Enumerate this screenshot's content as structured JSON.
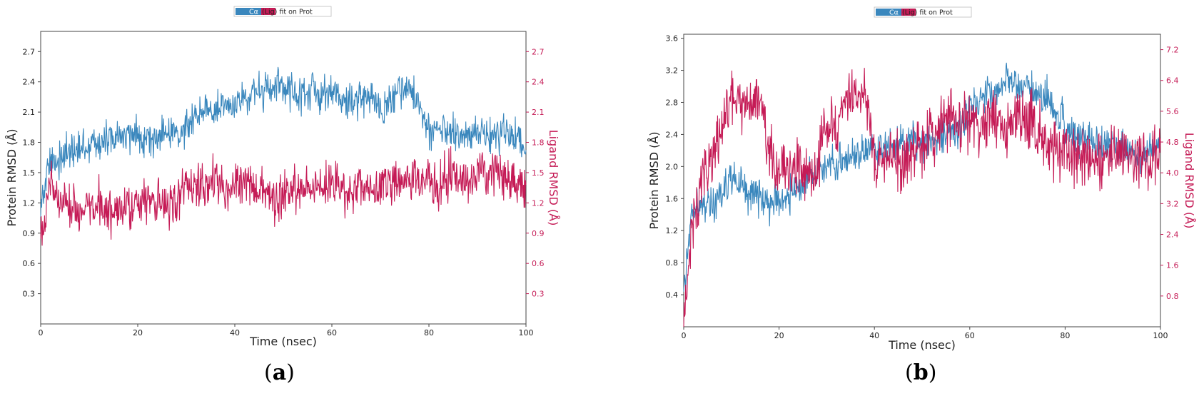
{
  "panels": [
    {
      "label_open": "(",
      "label_letter": "a",
      "label_close": ")",
      "legend": {
        "ca": "Cα",
        "lig": "(Lig) fit on Prot"
      },
      "xlabel": "Time (nsec)",
      "ylabel_left": "Protein RMSD (Å)",
      "ylabel_right": "Ligand RMSD (Å)",
      "xticks": [
        "0",
        "20",
        "40",
        "60",
        "80",
        "100"
      ],
      "yticks_left": [
        "0.3",
        "0.6",
        "0.9",
        "1.2",
        "1.5",
        "1.8",
        "2.1",
        "2.4",
        "2.7"
      ],
      "yticks_right": [
        "0.3",
        "0.6",
        "0.9",
        "1.2",
        "1.5",
        "1.8",
        "2.1",
        "2.4",
        "2.7"
      ]
    },
    {
      "label_open": "(",
      "label_letter": "b",
      "label_close": ")",
      "legend": {
        "ca": "Cα",
        "lig": "(Lig) fit on Prot"
      },
      "xlabel": "Time (nsec)",
      "ylabel_left": "Protein RMSD (Å)",
      "ylabel_right": "Ligand RMSD (Å)",
      "xticks": [
        "0",
        "20",
        "40",
        "60",
        "80",
        "100"
      ],
      "yticks_left": [
        "0.4",
        "0.8",
        "1.2",
        "1.6",
        "2.0",
        "2.4",
        "2.8",
        "3.2",
        "3.6"
      ],
      "yticks_right": [
        "0.8",
        "1.6",
        "2.4",
        "3.2",
        "4.0",
        "4.8",
        "5.6",
        "6.4",
        "7.2"
      ]
    }
  ],
  "colors": {
    "protein": "#3a87bd",
    "ligand": "#c51b56"
  },
  "chart_data": [
    {
      "type": "line",
      "xlabel": "Time (nsec)",
      "ylabel": "Protein RMSD (Å)",
      "y2label": "Ligand RMSD (Å)",
      "xlim": [
        0,
        100
      ],
      "ylim": [
        0,
        2.9
      ],
      "y2lim": [
        0,
        2.9
      ],
      "legend_position": "top-center",
      "grid": false,
      "series": [
        {
          "name": "Cα",
          "axis": "left",
          "x": [
            0,
            2,
            4,
            6,
            8,
            10,
            12,
            14,
            16,
            18,
            20,
            22,
            24,
            26,
            28,
            30,
            32,
            34,
            36,
            38,
            40,
            42,
            44,
            46,
            48,
            50,
            52,
            54,
            56,
            58,
            60,
            62,
            64,
            66,
            68,
            70,
            72,
            74,
            76,
            78,
            80,
            82,
            84,
            86,
            88,
            90,
            92,
            94,
            96,
            98,
            100
          ],
          "values": [
            1.2,
            1.6,
            1.65,
            1.7,
            1.72,
            1.78,
            1.8,
            1.82,
            1.85,
            1.85,
            1.88,
            1.85,
            1.84,
            1.88,
            1.9,
            1.95,
            2.1,
            2.15,
            2.1,
            2.12,
            2.2,
            2.25,
            2.3,
            2.3,
            2.32,
            2.35,
            2.3,
            2.28,
            2.3,
            2.25,
            2.3,
            2.22,
            2.2,
            2.25,
            2.2,
            2.15,
            2.2,
            2.3,
            2.35,
            2.2,
            1.9,
            1.92,
            1.88,
            1.85,
            1.85,
            1.9,
            1.88,
            1.85,
            1.9,
            1.85,
            1.75
          ]
        },
        {
          "name": "(Lig) fit on Prot",
          "axis": "right",
          "x": [
            0,
            2,
            4,
            6,
            8,
            10,
            12,
            14,
            16,
            18,
            20,
            22,
            24,
            26,
            28,
            30,
            32,
            34,
            36,
            38,
            40,
            42,
            44,
            46,
            48,
            50,
            52,
            54,
            56,
            58,
            60,
            62,
            64,
            66,
            68,
            70,
            72,
            74,
            76,
            78,
            80,
            82,
            84,
            86,
            88,
            90,
            92,
            94,
            96,
            98,
            100
          ],
          "values": [
            0.9,
            1.45,
            1.2,
            1.15,
            1.1,
            1.15,
            1.2,
            1.1,
            1.1,
            1.2,
            1.15,
            1.2,
            1.25,
            1.2,
            1.25,
            1.4,
            1.35,
            1.4,
            1.45,
            1.3,
            1.35,
            1.4,
            1.3,
            1.35,
            1.25,
            1.3,
            1.35,
            1.3,
            1.4,
            1.35,
            1.4,
            1.35,
            1.3,
            1.4,
            1.3,
            1.35,
            1.4,
            1.35,
            1.5,
            1.45,
            1.4,
            1.35,
            1.5,
            1.45,
            1.4,
            1.5,
            1.45,
            1.5,
            1.45,
            1.4,
            1.35
          ]
        }
      ]
    },
    {
      "type": "line",
      "xlabel": "Time (nsec)",
      "ylabel": "Protein RMSD (Å)",
      "y2label": "Ligand RMSD (Å)",
      "xlim": [
        0,
        100
      ],
      "ylim": [
        0,
        3.65
      ],
      "y2lim": [
        0,
        7.6
      ],
      "legend_position": "top-center",
      "grid": false,
      "series": [
        {
          "name": "Cα",
          "axis": "left",
          "x": [
            0,
            2,
            4,
            6,
            8,
            10,
            12,
            14,
            16,
            18,
            20,
            22,
            24,
            26,
            28,
            30,
            32,
            34,
            36,
            38,
            40,
            42,
            44,
            46,
            48,
            50,
            52,
            54,
            56,
            58,
            60,
            62,
            64,
            66,
            68,
            70,
            72,
            74,
            76,
            78,
            80,
            82,
            84,
            86,
            88,
            90,
            92,
            94,
            96,
            98,
            100
          ],
          "values": [
            0.6,
            1.5,
            1.5,
            1.55,
            1.65,
            1.9,
            1.75,
            1.7,
            1.6,
            1.55,
            1.6,
            1.65,
            1.7,
            1.85,
            1.95,
            2.0,
            2.1,
            2.05,
            2.15,
            2.2,
            2.25,
            2.2,
            2.25,
            2.3,
            2.35,
            2.3,
            2.4,
            2.35,
            2.4,
            2.45,
            2.7,
            2.8,
            3.0,
            2.95,
            3.1,
            3.0,
            2.95,
            2.9,
            2.85,
            2.7,
            2.5,
            2.4,
            2.35,
            2.3,
            2.25,
            2.3,
            2.2,
            2.2,
            2.15,
            2.2,
            2.2
          ]
        },
        {
          "name": "(Lig) fit on Prot",
          "axis": "right",
          "x": [
            0,
            2,
            4,
            6,
            8,
            10,
            12,
            14,
            16,
            18,
            20,
            22,
            24,
            26,
            28,
            30,
            32,
            34,
            36,
            38,
            40,
            42,
            44,
            46,
            48,
            50,
            52,
            54,
            56,
            58,
            60,
            62,
            64,
            66,
            68,
            70,
            72,
            74,
            76,
            78,
            80,
            82,
            84,
            86,
            88,
            90,
            92,
            94,
            96,
            98,
            100
          ],
          "values": [
            0.5,
            2.8,
            4.0,
            4.3,
            5.0,
            6.0,
            5.8,
            5.7,
            5.9,
            4.6,
            4.0,
            4.1,
            4.2,
            3.9,
            4.3,
            5.3,
            5.1,
            5.9,
            6.0,
            5.9,
            4.5,
            4.2,
            4.4,
            4.3,
            4.5,
            4.7,
            4.9,
            5.2,
            5.5,
            5.3,
            5.6,
            5.0,
            5.5,
            5.2,
            5.1,
            5.4,
            5.3,
            5.2,
            4.8,
            4.6,
            4.7,
            4.5,
            4.6,
            4.3,
            4.4,
            4.6,
            4.3,
            4.4,
            4.5,
            4.4,
            4.5
          ]
        }
      ]
    }
  ]
}
